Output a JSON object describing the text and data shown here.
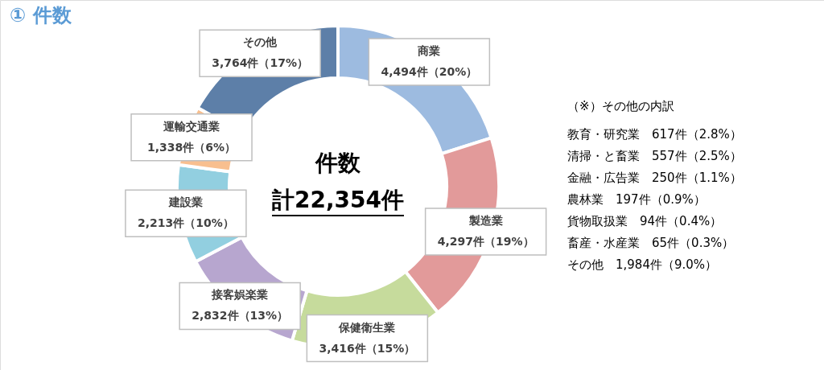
{
  "chart_data": {
    "type": "donut",
    "title": "① 件数",
    "categories": [
      "商業",
      "製造業",
      "保健衛生業",
      "接客娯楽業",
      "建設業",
      "運輸交通業",
      "その他"
    ],
    "values": [
      4494,
      4297,
      3416,
      2832,
      2213,
      1338,
      3764
    ],
    "value_labels": [
      "4,494件（20%）",
      "4,297件（19%）",
      "3,416件（15%）",
      "2,832件（13%）",
      "2,213件（10%）",
      "1,338件（6%）",
      "3,764件（17%）"
    ],
    "colors": [
      "#9dbbe0",
      "#e29a9a",
      "#c6db9c",
      "#b7a6cf",
      "#92cfe0",
      "#f8bf8f",
      "#5d7fa8"
    ],
    "legend": false,
    "annotations": [
      "件数",
      "計22,354件",
      "（※）その他の内訳",
      "教育・研究業　617件（2.8%）",
      "清掃・と畜業　557件（2.5%）",
      "金融・広告業　250件（1.1%）",
      "農林業　197件（0.9%）",
      "貨物取扱業　94件（0.4%）",
      "畜産・水産業　65件（0.3%）",
      "その他　1,984件（9.0%）"
    ]
  }
}
